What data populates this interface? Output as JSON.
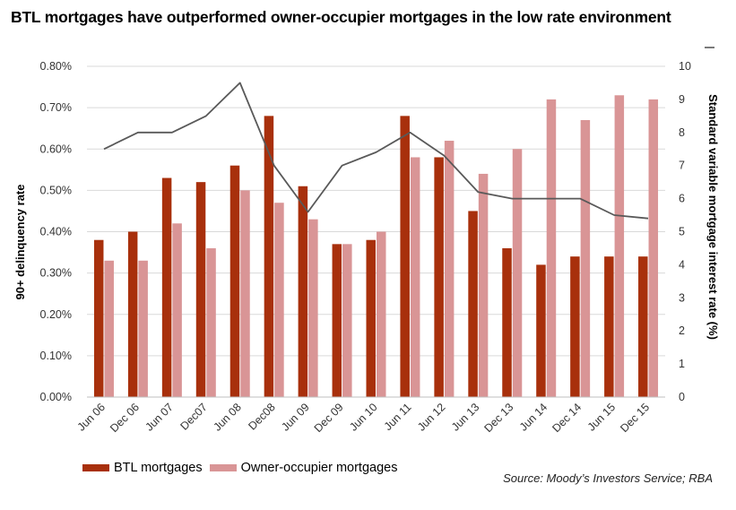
{
  "title": "BTL mortgages have outperformed owner-occupier mortgages in the low  rate environment",
  "source": "Source: Moody’s Investors Service; RBA",
  "colors": {
    "btl": "#a8300c",
    "owner": "#d99596",
    "svr": "#595959",
    "grid": "#d9d9d9"
  },
  "chart_data": {
    "type": "bar",
    "title": "BTL mortgages have outperformed owner-occupier mortgages in the low  rate environment",
    "categories": [
      "Jun 06",
      "Dec 06",
      "Jun 07",
      "Dec07",
      "Jun 08",
      "Dec08",
      "Jun 09",
      "Dec 09",
      "Jun 10",
      "Jun 11",
      "Jun 12",
      "Jun 13",
      "Dec 13",
      "Jun 14",
      "Dec 14",
      "Jun 15",
      "Dec 15"
    ],
    "left_axis": {
      "label": "90+ delinquency rate",
      "ticks": [
        "0.00%",
        "0.10%",
        "0.20%",
        "0.30%",
        "0.40%",
        "0.50%",
        "0.60%",
        "0.70%",
        "0.80%"
      ],
      "range": [
        0,
        0.8
      ]
    },
    "right_axis": {
      "label": "Standard variable mortgage interest rate   (%)",
      "ticks": [
        "0",
        "1",
        "2",
        "3",
        "4",
        "5",
        "6",
        "7",
        "8",
        "9",
        "10"
      ],
      "range": [
        0,
        10
      ]
    },
    "series": [
      {
        "name": "BTL mortgages",
        "type": "bar",
        "axis": "left",
        "values": [
          0.38,
          0.4,
          0.53,
          0.52,
          0.56,
          0.68,
          0.51,
          0.37,
          0.38,
          0.68,
          0.58,
          0.45,
          0.36,
          0.32,
          0.34,
          0.34,
          0.34
        ]
      },
      {
        "name": "Owner-occupier mortgages",
        "type": "bar",
        "axis": "left",
        "values": [
          0.33,
          0.33,
          0.42,
          0.36,
          0.5,
          0.47,
          0.43,
          0.37,
          0.4,
          0.58,
          0.62,
          0.54,
          0.6,
          0.72,
          0.67,
          0.73,
          0.72
        ]
      },
      {
        "name": "Standard variable mortgage interest rate   (%)",
        "type": "line",
        "axis": "right",
        "values": [
          7.5,
          8.0,
          8.0,
          8.5,
          9.5,
          7.0,
          5.6,
          7.0,
          7.4,
          8.0,
          7.3,
          6.2,
          6.0,
          6.0,
          6.0,
          5.5,
          5.4
        ]
      }
    ],
    "grid": true,
    "legend_position": "bottom-left"
  }
}
